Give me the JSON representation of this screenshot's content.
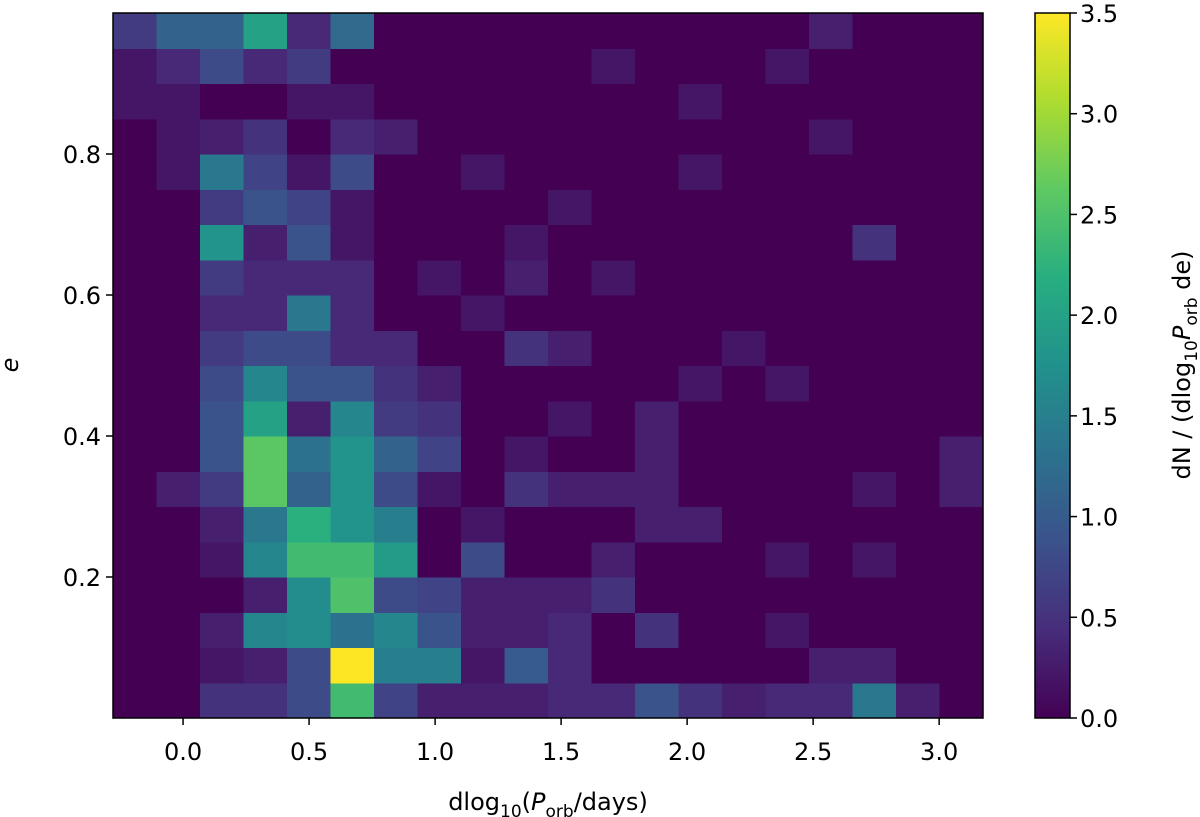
{
  "chart_data": {
    "type": "heatmap",
    "x_label": [
      "dlog",
      "10",
      "(",
      "P",
      "orb",
      "/days)"
    ],
    "y_label": "e",
    "colorbar_label": [
      "dN / (dlog",
      "10",
      "P",
      "orb",
      " de)"
    ],
    "colormap": "viridis",
    "x_bins": [
      -0.278,
      -0.105,
      0.067,
      0.24,
      0.412,
      0.585,
      0.758,
      0.93,
      1.103,
      1.275,
      1.448,
      1.62,
      1.793,
      1.966,
      2.138,
      2.311,
      2.484,
      2.656,
      2.829,
      3.001,
      3.174
    ],
    "y_bins": [
      0,
      0.05,
      0.1,
      0.15,
      0.2,
      0.25,
      0.3,
      0.35,
      0.4,
      0.45,
      0.5,
      0.55,
      0.6,
      0.65,
      0.7,
      0.75,
      0.8,
      0.85,
      0.9,
      0.95,
      1.0
    ],
    "z": [
      [
        0,
        0,
        0.5,
        0.5,
        0.8,
        2.4,
        0.7,
        0.3,
        0.3,
        0.3,
        0.4,
        0.4,
        0.9,
        0.5,
        0.3,
        0.4,
        0.4,
        1.4,
        0.3,
        0
      ],
      [
        0,
        0,
        0.2,
        0.3,
        0.8,
        3.5,
        1.5,
        1.5,
        0.2,
        1.0,
        0.4,
        0,
        0,
        0,
        0,
        0,
        0.3,
        0.3,
        0,
        0
      ],
      [
        0,
        0,
        0.3,
        1.6,
        1.7,
        1.3,
        1.6,
        0.9,
        0.3,
        0.3,
        0.4,
        0,
        0.5,
        0,
        0,
        0.2,
        0,
        0,
        0,
        0
      ],
      [
        0,
        0,
        0,
        0.3,
        1.7,
        2.5,
        0.8,
        0.7,
        0.3,
        0.3,
        0.3,
        0.5,
        0,
        0,
        0,
        0,
        0,
        0,
        0,
        0
      ],
      [
        0,
        0,
        0.2,
        1.6,
        2.4,
        2.4,
        1.9,
        0,
        0.8,
        0,
        0,
        0.3,
        0,
        0,
        0,
        0.2,
        0,
        0.2,
        0,
        0
      ],
      [
        0,
        0,
        0.3,
        1.4,
        2.2,
        1.8,
        1.5,
        0,
        0.2,
        0,
        0,
        0,
        0.3,
        0.3,
        0,
        0,
        0,
        0,
        0,
        0
      ],
      [
        0,
        0.3,
        0.6,
        2.6,
        1.1,
        1.8,
        0.8,
        0.2,
        0,
        0.5,
        0.3,
        0.3,
        0.3,
        0,
        0,
        0,
        0,
        0.2,
        0,
        0.3
      ],
      [
        0,
        0,
        0.9,
        2.6,
        1.3,
        1.8,
        1.1,
        0.7,
        0,
        0.2,
        0,
        0,
        0.3,
        0,
        0,
        0,
        0,
        0,
        0,
        0.3
      ],
      [
        0,
        0,
        0.9,
        2.0,
        0.3,
        1.6,
        0.6,
        0.5,
        0,
        0,
        0.2,
        0,
        0.3,
        0,
        0,
        0,
        0,
        0,
        0,
        0
      ],
      [
        0,
        0,
        0.8,
        1.6,
        0.9,
        0.9,
        0.5,
        0.3,
        0,
        0,
        0,
        0,
        0,
        0.2,
        0,
        0.2,
        0,
        0,
        0,
        0
      ],
      [
        0,
        0,
        0.6,
        0.8,
        0.8,
        0.4,
        0.4,
        0,
        0,
        0.5,
        0.3,
        0,
        0,
        0,
        0.2,
        0,
        0,
        0,
        0,
        0
      ],
      [
        0,
        0,
        0.4,
        0.4,
        1.4,
        0.4,
        0,
        0,
        0.2,
        0,
        0,
        0,
        0,
        0,
        0,
        0,
        0,
        0,
        0,
        0
      ],
      [
        0,
        0,
        0.6,
        0.4,
        0.4,
        0.4,
        0,
        0.2,
        0,
        0.3,
        0,
        0.2,
        0,
        0,
        0,
        0,
        0,
        0,
        0,
        0
      ],
      [
        0,
        0,
        1.8,
        0.3,
        0.9,
        0.2,
        0,
        0,
        0,
        0.2,
        0,
        0,
        0,
        0,
        0,
        0,
        0,
        0.5,
        0,
        0
      ],
      [
        0,
        0,
        0.6,
        0.9,
        0.7,
        0.2,
        0,
        0,
        0,
        0,
        0.2,
        0,
        0,
        0,
        0,
        0,
        0,
        0,
        0,
        0
      ],
      [
        0,
        0.2,
        1.4,
        0.7,
        0.2,
        0.8,
        0,
        0,
        0.2,
        0,
        0,
        0,
        0,
        0.2,
        0,
        0,
        0,
        0,
        0,
        0
      ],
      [
        0,
        0.2,
        0.3,
        0.5,
        0,
        0.4,
        0.3,
        0,
        0,
        0,
        0,
        0,
        0,
        0,
        0,
        0,
        0.2,
        0,
        0,
        0
      ],
      [
        0.2,
        0.2,
        0,
        0,
        0.2,
        0.2,
        0,
        0,
        0,
        0,
        0,
        0,
        0,
        0.2,
        0,
        0,
        0,
        0,
        0,
        0
      ],
      [
        0.2,
        0.4,
        0.8,
        0.4,
        0.6,
        0,
        0,
        0,
        0,
        0,
        0,
        0.2,
        0,
        0,
        0,
        0.2,
        0,
        0,
        0,
        0
      ],
      [
        0.6,
        1.1,
        1.1,
        2.0,
        0.4,
        1.2,
        0,
        0,
        0,
        0,
        0,
        0,
        0,
        0,
        0,
        0,
        0.3,
        0,
        0,
        0
      ]
    ],
    "xlim": [
      -0.278,
      3.174
    ],
    "ylim": [
      0,
      1.0
    ],
    "xticks": [
      {
        "value": 0,
        "label": "0.0"
      },
      0.5,
      {
        "value": 1,
        "label": "1.0"
      },
      1.5,
      {
        "value": 2,
        "label": "2.0"
      },
      2.5,
      {
        "value": 3,
        "label": "3.0"
      }
    ],
    "yticks": [
      0.2,
      0.4,
      0.6,
      0.8
    ],
    "clim": [
      0,
      3.5
    ],
    "cticks": [
      {
        "value": 0,
        "label": "0.0"
      },
      0.5,
      {
        "value": 1,
        "label": "1.0"
      },
      1.5,
      {
        "value": 2,
        "label": "2.0"
      },
      2.5,
      {
        "value": 3,
        "label": "3.0"
      },
      3.5
    ]
  }
}
